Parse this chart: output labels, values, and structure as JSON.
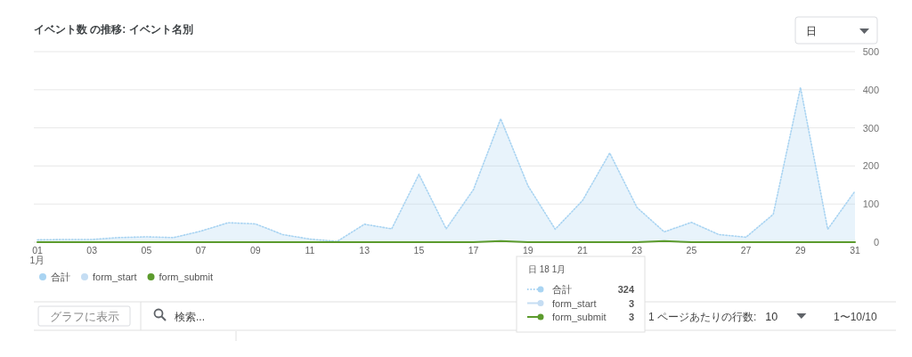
{
  "chart_data": {
    "type": "area",
    "title": "イベント数 の推移: イベント名別",
    "categories": [
      "01\n1月",
      null,
      "03",
      null,
      "05",
      null,
      "07",
      null,
      "09",
      null,
      "11",
      null,
      "13",
      null,
      "15",
      null,
      "17",
      null,
      "19",
      null,
      "21",
      null,
      "23",
      null,
      "25",
      null,
      "27",
      null,
      "29",
      null,
      "31"
    ],
    "series": [
      {
        "name": "合計",
        "color": "#a9d4f2",
        "line_style": "dotted",
        "values": [
          6,
          7,
          7,
          12,
          14,
          12,
          29,
          51,
          48,
          20,
          8,
          2,
          47,
          35,
          178,
          35,
          138,
          324,
          148,
          34,
          109,
          234,
          91,
          27,
          52,
          20,
          13,
          73,
          406,
          34,
          134
        ]
      },
      {
        "name": "form_start",
        "type": "line",
        "color": "#c5ddf3",
        "line_style": "solid",
        "values": [
          null,
          null,
          null,
          null,
          null,
          null,
          null,
          null,
          null,
          null,
          null,
          null,
          null,
          null,
          null,
          null,
          null,
          null,
          null,
          null,
          null,
          null,
          null,
          null,
          null,
          null,
          null,
          null,
          null,
          null,
          null
        ]
      },
      {
        "name": "form_submit",
        "type": "line",
        "color": "#5c9b2d",
        "line_style": "solid",
        "values": [
          0,
          0,
          0,
          0,
          0,
          0,
          0,
          0,
          0,
          0,
          0,
          0,
          0,
          0,
          0,
          0,
          0,
          3,
          0,
          0,
          0,
          0,
          0,
          3,
          0,
          0,
          0,
          0,
          0,
          0,
          0
        ]
      }
    ],
    "ylim": [
      0,
      500
    ],
    "yticks": [
      0,
      100,
      200,
      300,
      400,
      500
    ],
    "grid": "y",
    "legend": "bottom left",
    "annotations": [
      "日",
      "日 18 1月",
      "324",
      "3",
      "3",
      "グラフに表示",
      "検索...",
      "1 ページあたりの行数:",
      "10",
      "1〜10/10"
    ]
  }
}
